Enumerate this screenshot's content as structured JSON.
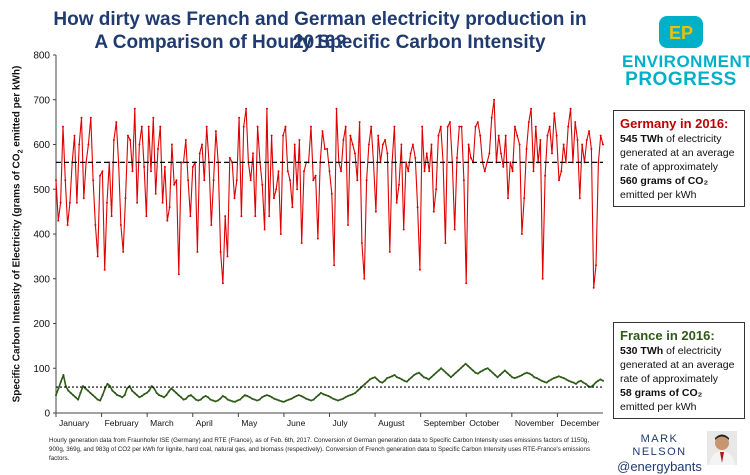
{
  "title_line1": "How dirty was French and German electricity production in 2016?",
  "title_line2": "A Comparison of Hourly Specific Carbon Intensity",
  "logo": {
    "top_text": "ENVIRONMENTAL",
    "bottom_text": "PROGRESS",
    "mark": "EP",
    "color": "#00b0c8"
  },
  "germany": {
    "heading": "Germany in 2016:",
    "line1_bold": "545 TWh",
    "line1_rest": " of electricity",
    "line2": "generated at an average",
    "line3": "rate of approximately",
    "line4_bold": "560 grams of CO₂",
    "line5": "emitted per kWh"
  },
  "france": {
    "heading": "France in 2016:",
    "line1_bold": "530 TWh",
    "line1_rest": " of electricity",
    "line2": "generated at an average",
    "line3": "rate of approximately",
    "line4_bold": "58 grams of CO₂",
    "line5": "emitted per kWh"
  },
  "note": "Hourly generation data from Fraunhofer ISE (Germany) and RTE (France), as of Feb. 6th, 2017. Conversion of German generation data to Specific Carbon Intensity uses emissions factors of 1150g, 900g, 369g, and 983g of CO2 per kWh for lignite, hard coal, natural gas, and biomass (respectively). Conversion of French generation data to Specific Carbon Intensity uses RTE-France's emissions factors.",
  "author": {
    "name": "MARK NELSON",
    "handle": "@energybants"
  },
  "y_axis_title_main": "Specific Carbon Intensity of Electricity (grams of CO",
  "y_axis_title_sub": "2",
  "y_axis_title_end": " emitted per kWh)",
  "chart_data": {
    "type": "line",
    "title": "How dirty was French and German electricity production in 2016? A Comparison of Hourly Specific Carbon Intensity",
    "xlabel": "",
    "ylabel": "Specific Carbon Intensity of Electricity (grams of CO2 emitted per kWh)",
    "ylim": [
      0,
      800
    ],
    "y_ticks": [
      0,
      100,
      200,
      300,
      400,
      500,
      600,
      700,
      800
    ],
    "x_ticks": [
      "January",
      "February",
      "March",
      "April",
      "May",
      "June",
      "July",
      "August",
      "September",
      "October",
      "November",
      "December"
    ],
    "grid": false,
    "series": [
      {
        "name": "Germany",
        "color": "#e00000",
        "values": [
          520,
          430,
          470,
          640,
          520,
          420,
          470,
          560,
          620,
          470,
          600,
          660,
          480,
          560,
          600,
          660,
          520,
          420,
          350,
          530,
          540,
          320,
          470,
          560,
          440,
          610,
          650,
          560,
          420,
          360,
          480,
          620,
          610,
          540,
          680,
          470,
          600,
          640,
          550,
          440,
          640,
          540,
          660,
          490,
          590,
          640,
          470,
          550,
          430,
          460,
          600,
          510,
          520,
          310,
          560,
          560,
          610,
          520,
          440,
          550,
          560,
          360,
          580,
          600,
          520,
          640,
          560,
          420,
          520,
          630,
          560,
          360,
          290,
          440,
          350,
          570,
          560,
          480,
          520,
          660,
          440,
          640,
          680,
          560,
          520,
          580,
          440,
          640,
          560,
          510,
          410,
          680,
          440,
          620,
          480,
          500,
          540,
          400,
          620,
          640,
          540,
          520,
          460,
          600,
          500,
          610,
          380,
          540,
          560,
          560,
          640,
          520,
          530,
          390,
          560,
          630,
          590,
          590,
          540,
          490,
          330,
          680,
          560,
          540,
          610,
          640,
          420,
          620,
          600,
          580,
          520,
          650,
          380,
          300,
          520,
          600,
          640,
          560,
          450,
          620,
          560,
          600,
          610,
          580,
          360,
          560,
          640,
          470,
          510,
          600,
          410,
          560,
          540,
          580,
          600,
          570,
          460,
          320,
          640,
          540,
          580,
          540,
          600,
          450,
          500,
          620,
          640,
          560,
          380,
          640,
          650,
          560,
          410,
          570,
          640,
          640,
          520,
          290,
          600,
          570,
          560,
          640,
          650,
          620,
          560,
          540,
          560,
          580,
          660,
          700,
          560,
          620,
          580,
          550,
          620,
          480,
          560,
          540,
          640,
          620,
          600,
          400,
          480,
          590,
          650,
          680,
          540,
          640,
          560,
          610,
          300,
          530,
          620,
          640,
          580,
          670,
          620,
          520,
          540,
          600,
          560,
          640,
          680,
          560,
          650,
          610,
          480,
          600,
          560,
          610,
          630,
          590,
          280,
          330,
          560,
          620,
          600
        ],
        "average_label": "approx. 560"
      },
      {
        "name": "France",
        "color": "#2e5a18",
        "values": [
          40,
          55,
          70,
          85,
          60,
          50,
          45,
          40,
          35,
          30,
          45,
          60,
          55,
          50,
          45,
          40,
          35,
          30,
          28,
          40,
          55,
          65,
          60,
          50,
          45,
          40,
          38,
          35,
          40,
          55,
          60,
          50,
          45,
          40,
          35,
          38,
          42,
          45,
          50,
          60,
          55,
          45,
          40,
          38,
          35,
          40,
          48,
          55,
          50,
          45,
          40,
          35,
          30,
          32,
          38,
          40,
          35,
          30,
          28,
          30,
          35,
          38,
          35,
          30,
          28,
          26,
          28,
          32,
          38,
          35,
          30,
          28,
          26,
          25,
          28,
          30,
          35,
          40,
          38,
          35,
          32,
          30,
          28,
          30,
          35,
          38,
          40,
          38,
          35,
          32,
          30,
          28,
          26,
          25,
          28,
          30,
          32,
          35,
          38,
          40,
          38,
          35,
          32,
          30,
          28,
          30,
          35,
          40,
          45,
          42,
          40,
          38,
          35,
          32,
          30,
          28,
          30,
          32,
          35,
          38,
          40,
          42,
          45,
          50,
          55,
          60,
          65,
          70,
          75,
          78,
          80,
          75,
          70,
          68,
          72,
          78,
          80,
          82,
          85,
          80,
          78,
          75,
          72,
          70,
          75,
          80,
          85,
          88,
          90,
          85,
          80,
          78,
          75,
          80,
          85,
          90,
          95,
          100,
          95,
          90,
          85,
          80,
          85,
          90,
          95,
          100,
          105,
          110,
          105,
          100,
          95,
          90,
          88,
          92,
          95,
          98,
          100,
          95,
          90,
          85,
          80,
          85,
          90,
          95,
          90,
          85,
          80,
          78,
          80,
          82,
          85,
          88,
          90,
          88,
          85,
          80,
          78,
          75,
          72,
          70,
          68,
          72,
          75,
          78,
          80,
          82,
          80,
          78,
          75,
          72,
          70,
          68,
          65,
          70,
          72,
          68,
          65,
          60,
          58,
          62,
          68,
          72,
          75,
          72
        ],
        "average_label": "approx. 58"
      }
    ],
    "reference_lines": [
      {
        "series": "Germany",
        "y": 560,
        "style": "dashed"
      },
      {
        "series": "France",
        "y": 58,
        "style": "dashed"
      }
    ]
  }
}
